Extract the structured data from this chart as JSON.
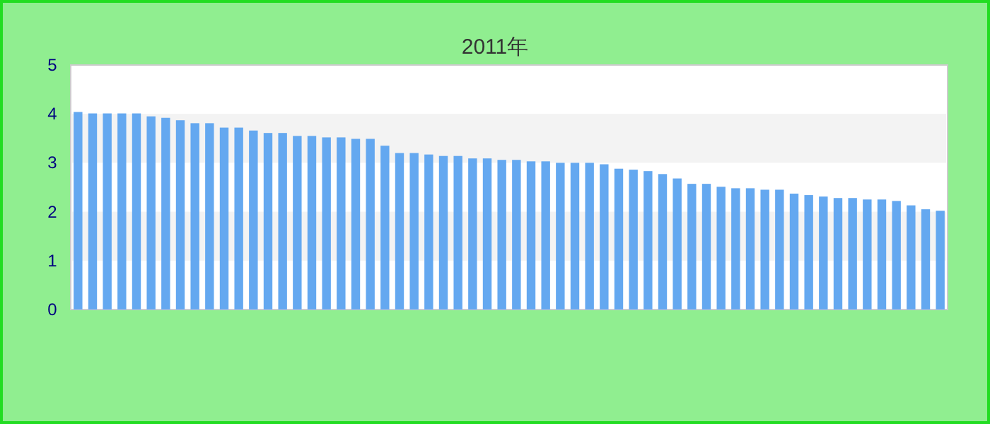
{
  "chart_data": {
    "type": "bar",
    "title": "2011年",
    "categories": [
      null,
      null,
      null,
      null,
      null,
      null,
      null,
      null,
      null,
      null,
      null,
      null,
      null,
      null,
      null,
      null,
      null,
      null,
      null,
      null,
      null,
      null,
      null,
      null,
      null,
      null,
      null,
      null,
      null,
      null,
      null,
      null,
      null,
      null,
      null,
      null,
      null,
      null,
      null,
      null,
      null,
      null,
      null,
      null,
      null,
      null,
      null,
      null,
      null,
      null,
      null,
      null,
      null,
      null,
      null,
      null,
      null,
      null,
      null,
      null
    ],
    "values": [
      4.04,
      4.01,
      4.01,
      4.01,
      4.01,
      3.95,
      3.92,
      3.87,
      3.81,
      3.81,
      3.72,
      3.72,
      3.66,
      3.61,
      3.61,
      3.55,
      3.55,
      3.52,
      3.52,
      3.49,
      3.49,
      3.35,
      3.2,
      3.2,
      3.17,
      3.14,
      3.14,
      3.09,
      3.09,
      3.06,
      3.06,
      3.03,
      3.03,
      3.0,
      3.0,
      3.0,
      2.97,
      2.88,
      2.86,
      2.83,
      2.77,
      2.68,
      2.57,
      2.57,
      2.51,
      2.48,
      2.48,
      2.45,
      2.45,
      2.37,
      2.34,
      2.31,
      2.28,
      2.28,
      2.25,
      2.25,
      2.22,
      2.13,
      2.05,
      2.02
    ],
    "color": "#64a8f0",
    "ylim": [
      0,
      5
    ],
    "yticks": [
      0,
      1,
      2,
      3,
      4,
      5
    ]
  }
}
